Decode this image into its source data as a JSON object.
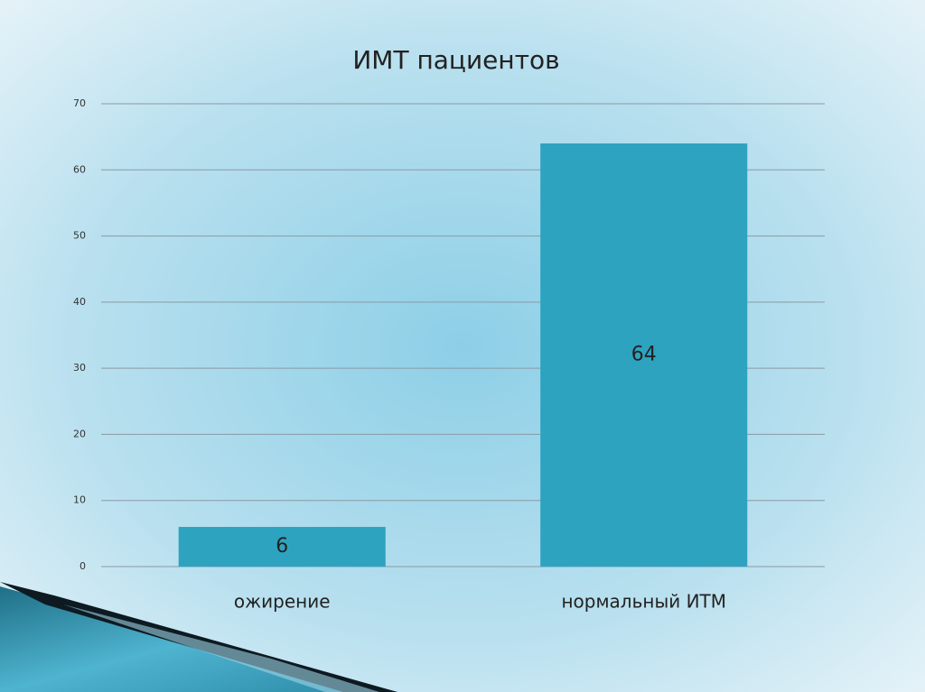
{
  "chart_data": {
    "type": "bar",
    "title": "ИМТ пациентов",
    "categories": [
      "ожирение",
      "нормальный ИТМ"
    ],
    "values": [
      6,
      64
    ],
    "color": "#2ea3c0",
    "ylim": [
      0,
      70
    ],
    "yticks": [
      0,
      10,
      20,
      30,
      40,
      50,
      60,
      70
    ],
    "grid": true
  }
}
